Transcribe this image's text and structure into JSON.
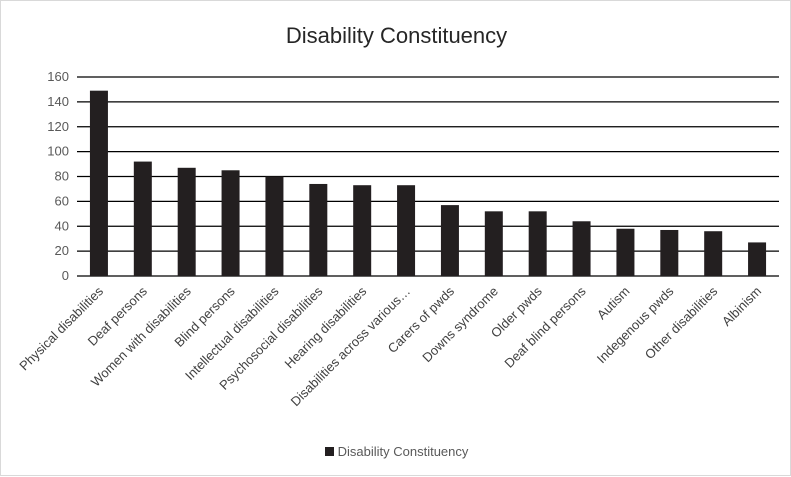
{
  "chart_data": {
    "type": "bar",
    "title": "Disability Constituency",
    "categories": [
      "Physical disabilities",
      "Deaf persons",
      "Women with disabilities",
      "Blind persons",
      "Intellectual disabilities",
      "Psychosocial disabilities",
      "Hearing disabilities",
      "Disabilities across various…",
      "Carers of pwds",
      "Downs syndrome",
      "Older pwds",
      "Deaf blind persons",
      "Autism",
      "Indegenous pwds",
      "Other disabilities",
      "Albinism"
    ],
    "series": [
      {
        "name": "Disability Constituency",
        "values": [
          149,
          92,
          87,
          85,
          80,
          74,
          73,
          73,
          57,
          52,
          52,
          44,
          38,
          37,
          36,
          27
        ],
        "color": "#231f20"
      }
    ],
    "ylim": [
      0,
      160
    ],
    "yticks": [
      0,
      20,
      40,
      60,
      80,
      100,
      120,
      140,
      160
    ],
    "grid": true,
    "legend_position": "bottom"
  }
}
